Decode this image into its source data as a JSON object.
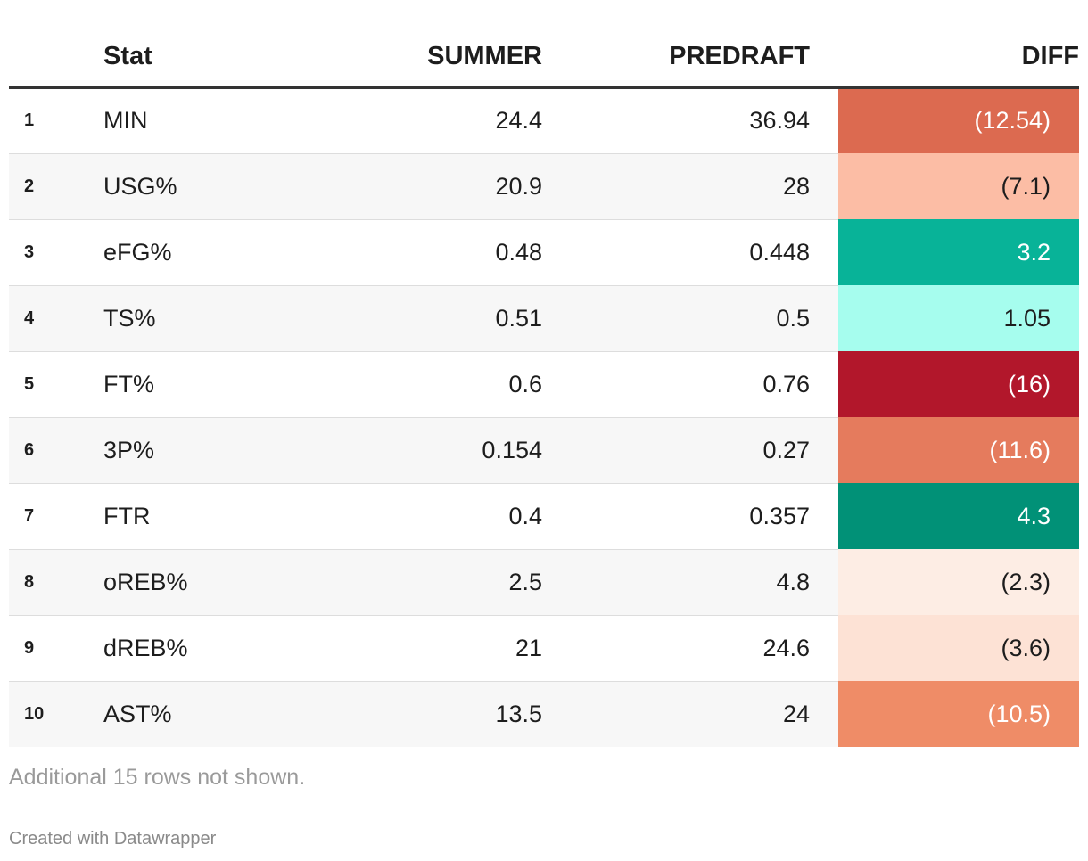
{
  "chart_data": {
    "type": "table",
    "columns": [
      "",
      "Stat",
      "SUMMER",
      "PREDRAFT",
      "DIFF"
    ],
    "rows": [
      {
        "rank": "1",
        "stat": "MIN",
        "summer": "24.4",
        "predraft": "36.94",
        "diff": "(12.54)",
        "diff_value": -12.54,
        "diff_color": "#dc6a50",
        "diff_text_color": "#ffffff"
      },
      {
        "rank": "2",
        "stat": "USG%",
        "summer": "20.9",
        "predraft": "28",
        "diff": "(7.1)",
        "diff_value": -7.1,
        "diff_color": "#fcbda5",
        "diff_text_color": "#1d1d1d"
      },
      {
        "rank": "3",
        "stat": "eFG%",
        "summer": "0.48",
        "predraft": "0.448",
        "diff": "3.2",
        "diff_value": 3.2,
        "diff_color": "#08b398",
        "diff_text_color": "#ffffff"
      },
      {
        "rank": "4",
        "stat": "TS%",
        "summer": "0.51",
        "predraft": "0.5",
        "diff": "1.05",
        "diff_value": 1.05,
        "diff_color": "#a6fdee",
        "diff_text_color": "#1d1d1d"
      },
      {
        "rank": "5",
        "stat": "FT%",
        "summer": "0.6",
        "predraft": "0.76",
        "diff": "(16)",
        "diff_value": -16,
        "diff_color": "#b2172b",
        "diff_text_color": "#ffffff"
      },
      {
        "rank": "6",
        "stat": "3P%",
        "summer": "0.154",
        "predraft": "0.27",
        "diff": "(11.6)",
        "diff_value": -11.6,
        "diff_color": "#e57b5d",
        "diff_text_color": "#ffffff"
      },
      {
        "rank": "7",
        "stat": "FTR",
        "summer": "0.4",
        "predraft": "0.357",
        "diff": "4.3",
        "diff_value": 4.3,
        "diff_color": "#019177",
        "diff_text_color": "#ffffff"
      },
      {
        "rank": "8",
        "stat": "oREB%",
        "summer": "2.5",
        "predraft": "4.8",
        "diff": "(2.3)",
        "diff_value": -2.3,
        "diff_color": "#fdede4",
        "diff_text_color": "#1d1d1d"
      },
      {
        "rank": "9",
        "stat": "dREB%",
        "summer": "21",
        "predraft": "24.6",
        "diff": "(3.6)",
        "diff_value": -3.6,
        "diff_color": "#fde2d5",
        "diff_text_color": "#1d1d1d"
      },
      {
        "rank": "10",
        "stat": "AST%",
        "summer": "13.5",
        "predraft": "24",
        "diff": "(10.5)",
        "diff_value": -10.5,
        "diff_color": "#ef8c67",
        "diff_text_color": "#ffffff"
      }
    ]
  },
  "footer": {
    "note": "Additional 15 rows not shown.",
    "credit": "Created with Datawrapper"
  },
  "colors": {
    "header_rule": "#333333",
    "row_alt": "#f7f7f7",
    "note": "#9a9a9a"
  }
}
